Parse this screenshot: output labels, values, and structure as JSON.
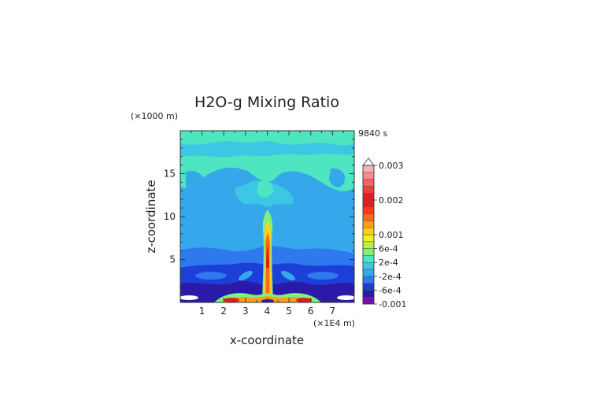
{
  "chart_data": {
    "type": "heatmap",
    "title": "H2O-g Mixing Ratio",
    "time_label": "9840 s",
    "xlabel": "x-coordinate",
    "ylabel": "z-coordinate",
    "x_unit": "(×1E4 m)",
    "y_unit": "(×1000 m)",
    "xlim": [
      0,
      8
    ],
    "ylim": [
      0,
      20
    ],
    "x_ticks": [
      1,
      2,
      3,
      4,
      5,
      6,
      7
    ],
    "y_ticks": [
      5,
      10,
      15
    ],
    "x_tick_labels": [
      "1",
      "2",
      "3",
      "4",
      "5",
      "6",
      "7"
    ],
    "y_tick_labels": [
      "5",
      "10",
      "15"
    ],
    "colorbar": {
      "levels": [
        -0.001,
        -0.0008,
        -0.0006,
        -0.0004,
        -0.0002,
        0,
        0.0002,
        0.0004,
        0.0006,
        0.0008,
        0.001,
        0.0012,
        0.0014,
        0.0016,
        0.0018,
        0.002,
        0.0022,
        0.0024,
        0.0026,
        0.0028,
        0.003
      ],
      "colors": [
        "#7a0fa8",
        "#2a1aa8",
        "#1c3fd8",
        "#2f78ee",
        "#35a8ec",
        "#3cc8e4",
        "#4ee6c0",
        "#7ff27a",
        "#b6f23c",
        "#eef21e",
        "#ffcf1a",
        "#ff9d1a",
        "#ff6a1a",
        "#ff3a1a",
        "#f01818",
        "#e02020",
        "#ef4040",
        "#f66262",
        "#f98a8a",
        "#fbb0b0"
      ],
      "tick_labels": [
        "0.003",
        "0.002",
        "0.001",
        "6e-4",
        "2e-4",
        "-2e-4",
        "-6e-4",
        "-0.001"
      ],
      "tick_values": [
        0.003,
        0.002,
        0.001,
        0.0006,
        0.0002,
        -0.0002,
        -0.0006,
        -0.001
      ],
      "extend": "max"
    }
  }
}
